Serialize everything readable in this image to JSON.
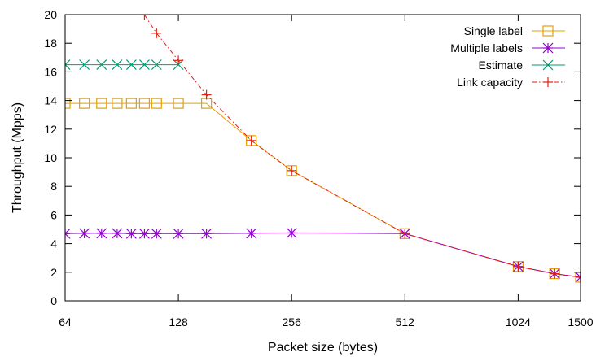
{
  "chart_data": {
    "type": "line",
    "title": "",
    "xlabel": "Packet size (bytes)",
    "ylabel": "Throughput (Mpps)",
    "x_scale": "log2",
    "xlim": [
      64,
      1500
    ],
    "ylim": [
      0,
      20
    ],
    "x_ticks": [
      64,
      128,
      256,
      512,
      1024,
      1500
    ],
    "y_ticks": [
      0,
      2,
      4,
      6,
      8,
      10,
      12,
      14,
      16,
      18,
      20
    ],
    "grid": false,
    "legend_position": "top-right",
    "series": [
      {
        "name": "Single label",
        "color": "#e6a000",
        "marker": "open-square",
        "x": [
          64,
          72,
          80,
          88,
          96,
          104,
          112,
          128,
          152,
          200,
          256,
          512,
          1024,
          1280,
          1500
        ],
        "y": [
          13.8,
          13.8,
          13.8,
          13.8,
          13.8,
          13.8,
          13.8,
          13.8,
          13.8,
          11.2,
          9.1,
          4.7,
          2.4,
          1.9,
          1.65
        ]
      },
      {
        "name": "Multiple labels",
        "color": "#9400d3",
        "marker": "asterisk",
        "x": [
          64,
          72,
          80,
          88,
          96,
          104,
          112,
          128,
          152,
          200,
          256,
          512,
          1024,
          1280,
          1500
        ],
        "y": [
          4.7,
          4.72,
          4.72,
          4.72,
          4.7,
          4.7,
          4.7,
          4.7,
          4.7,
          4.72,
          4.75,
          4.7,
          2.4,
          1.9,
          1.65
        ]
      },
      {
        "name": "Estimate",
        "color": "#009e73",
        "marker": "x",
        "x": [
          64,
          72,
          80,
          88,
          96,
          104,
          112,
          128
        ],
        "y": [
          16.5,
          16.5,
          16.5,
          16.5,
          16.5,
          16.5,
          16.5,
          16.5
        ]
      },
      {
        "name": "Link capacity",
        "color": "#e51e10",
        "marker": "plus",
        "dashed": true,
        "x": [
          104,
          112,
          128,
          152,
          200,
          256,
          512,
          1024,
          1280,
          1500
        ],
        "y": [
          20.0,
          18.7,
          16.8,
          14.4,
          11.2,
          9.1,
          4.7,
          2.4,
          1.9,
          1.65
        ]
      }
    ]
  }
}
